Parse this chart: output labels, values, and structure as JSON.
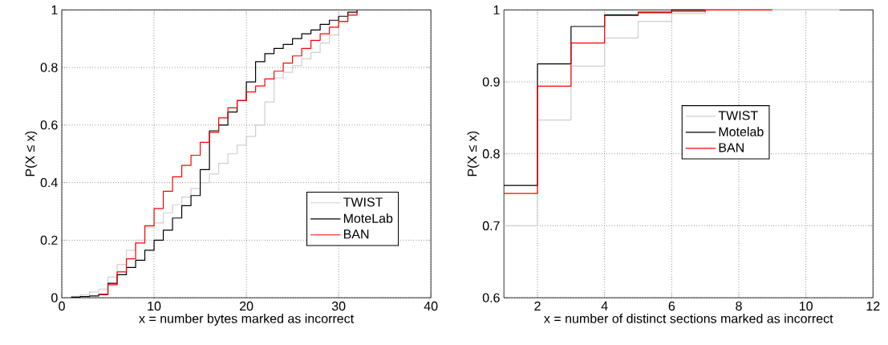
{
  "chart_data": [
    {
      "type": "step",
      "xlabel": "x = number bytes marked as incorrect",
      "ylabel": "P(X ≤ x)",
      "xlim": [
        0,
        40
      ],
      "ylim": [
        0,
        1
      ],
      "xticks": [
        0,
        10,
        20,
        30,
        40
      ],
      "yticks": [
        0,
        0.2,
        0.4,
        0.6,
        0.8,
        1
      ],
      "grid": true,
      "legend": "bottom right",
      "line_style": "solid",
      "series": [
        {
          "name": "TWIST",
          "color": "#cfcfcf",
          "x": [
            1,
            2,
            3,
            4,
            5,
            6,
            7,
            8,
            9,
            10,
            11,
            12,
            13,
            14,
            15,
            16,
            17,
            18,
            19,
            20,
            21,
            22,
            23,
            24,
            25,
            26,
            27,
            28,
            29,
            30,
            31,
            32
          ],
          "values": [
            0.005,
            0.01,
            0.02,
            0.03,
            0.072,
            0.115,
            0.165,
            0.2,
            0.245,
            0.26,
            0.295,
            0.323,
            0.35,
            0.38,
            0.4,
            0.43,
            0.467,
            0.5,
            0.53,
            0.56,
            0.6,
            0.68,
            0.764,
            0.783,
            0.806,
            0.83,
            0.852,
            0.885,
            0.913,
            0.955,
            0.987,
            1
          ]
        },
        {
          "name": "MoteLab",
          "color": "#000000",
          "x": [
            1,
            2,
            3,
            4,
            5,
            6,
            7,
            8,
            9,
            10,
            11,
            12,
            13,
            14,
            15,
            16,
            17,
            18,
            19,
            20,
            21,
            22,
            23,
            24,
            25,
            26,
            27,
            28,
            29,
            30,
            31,
            32
          ],
          "values": [
            0.002,
            0.004,
            0.006,
            0.012,
            0.05,
            0.08,
            0.105,
            0.13,
            0.165,
            0.2,
            0.235,
            0.277,
            0.32,
            0.355,
            0.445,
            0.58,
            0.6,
            0.645,
            0.685,
            0.75,
            0.82,
            0.848,
            0.866,
            0.88,
            0.9,
            0.917,
            0.93,
            0.95,
            0.964,
            0.978,
            0.992,
            1
          ]
        },
        {
          "name": "BAN",
          "color": "#ff0000",
          "x": [
            4,
            5,
            6,
            7,
            8,
            9,
            10,
            11,
            12,
            13,
            14,
            15,
            16,
            17,
            18,
            19,
            20,
            21,
            22,
            23,
            24,
            25,
            26,
            27,
            28,
            29,
            30,
            31,
            32
          ],
          "values": [
            0.01,
            0.045,
            0.09,
            0.135,
            0.19,
            0.25,
            0.31,
            0.37,
            0.42,
            0.46,
            0.495,
            0.54,
            0.575,
            0.625,
            0.66,
            0.685,
            0.715,
            0.736,
            0.76,
            0.787,
            0.815,
            0.84,
            0.866,
            0.894,
            0.917,
            0.94,
            0.96,
            0.982,
            1
          ]
        }
      ]
    },
    {
      "type": "step",
      "xlabel": "x = number of distinct sections marked as incorrect",
      "ylabel": "P(X ≤ x)",
      "xlim": [
        1,
        12
      ],
      "ylim": [
        0.6,
        1
      ],
      "xticks": [
        2,
        4,
        6,
        8,
        10,
        12
      ],
      "yticks": [
        0.6,
        0.7,
        0.8,
        0.9,
        1
      ],
      "grid": true,
      "legend": "right",
      "line_style": "solid",
      "series": [
        {
          "name": "TWIST",
          "color": "#cfcfcf",
          "x": [
            1,
            2,
            3,
            4,
            5,
            6,
            7,
            11
          ],
          "values": [
            0.7,
            0.847,
            0.922,
            0.961,
            0.984,
            0.995,
            1,
            1
          ]
        },
        {
          "name": "Motelab",
          "color": "#000000",
          "x": [
            1,
            2,
            3,
            4,
            5,
            6,
            7
          ],
          "values": [
            0.756,
            0.925,
            0.977,
            0.993,
            0.997,
            1,
            1
          ]
        },
        {
          "name": "BAN",
          "color": "#ff0000",
          "x": [
            1,
            2,
            3,
            4,
            5,
            6,
            7,
            9
          ],
          "values": [
            0.745,
            0.894,
            0.954,
            0.992,
            0.996,
            0.998,
            1,
            1
          ]
        }
      ]
    }
  ]
}
